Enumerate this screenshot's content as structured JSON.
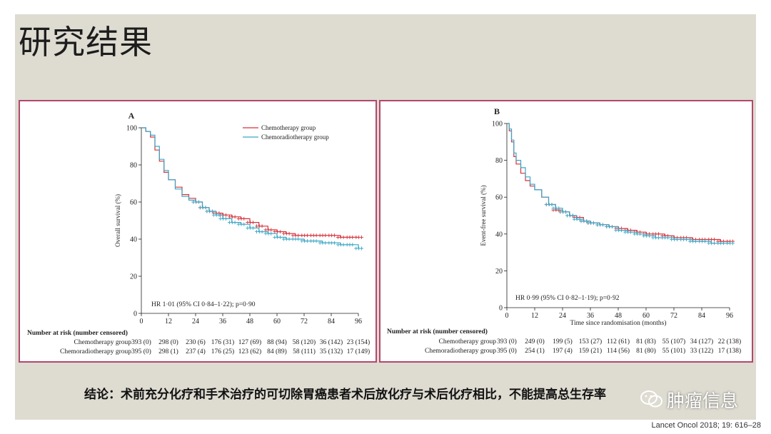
{
  "slide": {
    "title": "研究结果",
    "conclusion": "结论：术前充分化疗和手术治疗的可切除胃癌患者术后放化疗与术后化疗相比，不能提高总生存率",
    "watermark": "肿瘤信息",
    "citation": "Lancet Oncol 2018; 19: 616–28"
  },
  "colors": {
    "chemotherapy": "#d6323a",
    "chemoradiotherapy": "#3ba6c6",
    "frame": "#b2486d",
    "background": "#dedbd1"
  },
  "chart_data": [
    {
      "panel": "A",
      "type": "line",
      "ylabel": "Overall survival (%)",
      "xlabel": "",
      "xlim": [
        0,
        96
      ],
      "ylim": [
        0,
        100
      ],
      "xticks": [
        0,
        12,
        24,
        36,
        48,
        60,
        72,
        84,
        96
      ],
      "yticks": [
        0,
        20,
        40,
        60,
        80,
        100
      ],
      "legend_position": "top-right",
      "annotation": "HR 1·01 (95% CI 0·84–1·22); p=0·90",
      "series": [
        {
          "name": "Chemotherapy group",
          "color": "#d6323a",
          "x": [
            0,
            2,
            4,
            6,
            8,
            10,
            12,
            15,
            18,
            21,
            24,
            27,
            30,
            33,
            36,
            40,
            44,
            48,
            52,
            56,
            60,
            64,
            68,
            72,
            76,
            80,
            84,
            88,
            92,
            96
          ],
          "y": [
            100,
            98,
            95,
            88,
            82,
            76,
            72,
            68,
            64,
            62,
            60,
            57,
            55,
            54,
            53,
            52,
            51,
            49,
            47,
            45,
            44,
            43,
            42,
            42,
            42,
            42,
            42,
            41,
            41,
            41
          ]
        },
        {
          "name": "Chemoradiotherapy group",
          "color": "#3ba6c6",
          "x": [
            0,
            2,
            4,
            6,
            8,
            10,
            12,
            15,
            18,
            21,
            24,
            27,
            30,
            33,
            36,
            40,
            44,
            48,
            52,
            56,
            60,
            64,
            68,
            72,
            76,
            80,
            84,
            88,
            92,
            96
          ],
          "y": [
            100,
            98,
            96,
            90,
            83,
            77,
            72,
            67,
            63,
            61,
            60,
            57,
            55,
            53,
            51,
            49,
            48,
            46,
            44,
            43,
            41,
            40,
            40,
            39,
            39,
            38,
            38,
            37,
            37,
            35
          ]
        }
      ],
      "risk_table": {
        "header": "Number at risk (number censored)",
        "rows": [
          {
            "label": "Chemotherapy group",
            "values": [
              "393 (0)",
              "298 (0)",
              "230 (6)",
              "176 (31)",
              "127 (69)",
              "88 (94)",
              "58 (120)",
              "36 (142)",
              "23 (154)"
            ]
          },
          {
            "label": "Chemoradiotherapy group",
            "values": [
              "395 (0)",
              "298 (1)",
              "237 (4)",
              "176 (25)",
              "123 (62)",
              "84 (89)",
              "58 (111)",
              "35 (132)",
              "17 (149)"
            ]
          }
        ]
      }
    },
    {
      "panel": "B",
      "type": "line",
      "ylabel": "Event-free survival (%)",
      "xlabel": "Time since randomisation (months)",
      "xlim": [
        0,
        96
      ],
      "ylim": [
        0,
        100
      ],
      "xticks": [
        0,
        12,
        24,
        36,
        48,
        60,
        72,
        84,
        96
      ],
      "yticks": [
        0,
        20,
        40,
        60,
        80,
        100
      ],
      "legend_position": "none",
      "annotation": "HR 0·99 (95% CI 0·82–1·19); p=0·92",
      "series": [
        {
          "name": "Chemotherapy group",
          "color": "#d6323a",
          "x": [
            0,
            1,
            2,
            3,
            4,
            6,
            8,
            10,
            12,
            15,
            18,
            21,
            24,
            27,
            30,
            33,
            36,
            40,
            44,
            48,
            52,
            56,
            60,
            64,
            68,
            72,
            76,
            80,
            84,
            88,
            92,
            96
          ],
          "y": [
            100,
            96,
            90,
            82,
            78,
            73,
            69,
            66,
            64,
            60,
            56,
            53,
            52,
            50,
            49,
            47,
            46,
            45,
            44,
            43,
            42,
            41,
            40,
            40,
            39,
            38,
            38,
            37,
            37,
            37,
            36,
            36
          ]
        },
        {
          "name": "Chemoradiotherapy group",
          "color": "#3ba6c6",
          "x": [
            0,
            1,
            2,
            3,
            4,
            6,
            8,
            10,
            12,
            15,
            18,
            21,
            24,
            27,
            30,
            33,
            36,
            40,
            44,
            48,
            52,
            56,
            60,
            64,
            68,
            72,
            76,
            80,
            84,
            88,
            92,
            96
          ],
          "y": [
            100,
            97,
            91,
            84,
            80,
            76,
            71,
            67,
            64,
            60,
            56,
            54,
            52,
            50,
            48,
            47,
            46,
            45,
            44,
            42,
            41,
            40,
            39,
            38,
            38,
            37,
            37,
            36,
            36,
            35,
            35,
            35
          ]
        }
      ],
      "risk_table": {
        "header": "Number at risk (number censored)",
        "rows": [
          {
            "label": "Chemotherapy group",
            "values": [
              "393 (0)",
              "249 (0)",
              "199 (5)",
              "153 (27)",
              "112 (61)",
              "81 (83)",
              "55 (107)",
              "34 (127)",
              "22 (138)"
            ]
          },
          {
            "label": "Chemoradiotherapy group",
            "values": [
              "395 (0)",
              "254 (1)",
              "197 (4)",
              "159 (21)",
              "114 (56)",
              "81 (80)",
              "55 (101)",
              "33 (122)",
              "17 (138)"
            ]
          }
        ]
      }
    }
  ]
}
